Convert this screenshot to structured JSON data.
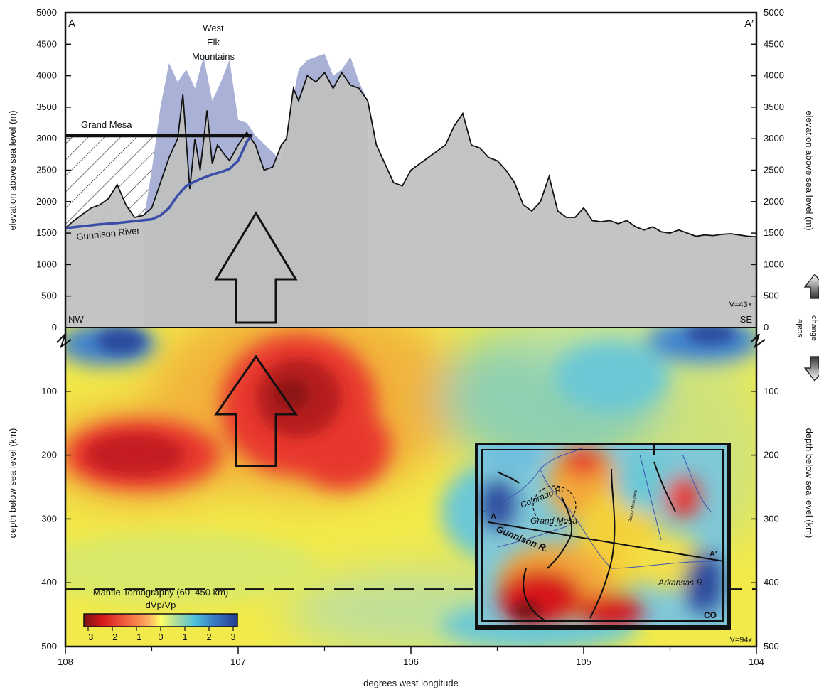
{
  "chart_data": {
    "type": "area",
    "upper_panel": {
      "ylabel": "elevation above sea level (m)",
      "ylim": [
        0,
        5000
      ],
      "yticks": [
        0,
        500,
        1000,
        1500,
        2000,
        2500,
        3000,
        3500,
        4000,
        4500,
        5000
      ],
      "ylabels_left": [
        "0",
        "500",
        "1000",
        "1500",
        "2000",
        "2500",
        "3000",
        "3500",
        "4000",
        "4500",
        "5000"
      ],
      "ylabels_right": [
        "0",
        "500",
        "1000",
        "1500",
        "2000",
        "2500",
        "3000",
        "3500",
        "4000",
        "4500",
        "5000"
      ],
      "topography": {
        "x": [
          108.0,
          107.95,
          107.9,
          107.85,
          107.8,
          107.75,
          107.7,
          107.65,
          107.6,
          107.55,
          107.5,
          107.45,
          107.4,
          107.35,
          107.32,
          107.28,
          107.25,
          107.22,
          107.18,
          107.15,
          107.12,
          107.08,
          107.05,
          107.0,
          106.95,
          106.9,
          106.85,
          106.8,
          106.75,
          106.72,
          106.68,
          106.65,
          106.6,
          106.55,
          106.5,
          106.45,
          106.4,
          106.35,
          106.3,
          106.25,
          106.2,
          106.15,
          106.1,
          106.05,
          106.0,
          105.95,
          105.9,
          105.85,
          105.8,
          105.75,
          105.7,
          105.65,
          105.6,
          105.55,
          105.5,
          105.45,
          105.4,
          105.35,
          105.3,
          105.25,
          105.2,
          105.15,
          105.1,
          105.05,
          105.0,
          104.95,
          104.9,
          104.85,
          104.8,
          104.75,
          104.7,
          104.65,
          104.6,
          104.55,
          104.5,
          104.45,
          104.4,
          104.35,
          104.3,
          104.25,
          104.2,
          104.15,
          104.1,
          104.05,
          104.0
        ],
        "y": [
          1580,
          1700,
          1800,
          1900,
          1950,
          2050,
          2270,
          1950,
          1750,
          1780,
          1900,
          2300,
          2700,
          3000,
          3700,
          2200,
          3000,
          2500,
          3450,
          2600,
          2900,
          2750,
          2650,
          2900,
          3100,
          2900,
          2500,
          2550,
          2900,
          3000,
          3800,
          3600,
          4000,
          3900,
          4050,
          3800,
          4050,
          3850,
          3800,
          3600,
          2900,
          2600,
          2300,
          2250,
          2500,
          2600,
          2700,
          2800,
          2900,
          3200,
          3400,
          2900,
          2850,
          2700,
          2650,
          2500,
          2300,
          1950,
          1850,
          2000,
          2400,
          1850,
          1750,
          1750,
          1900,
          1700,
          1680,
          1700,
          1650,
          1700,
          1600,
          1550,
          1600,
          1520,
          1500,
          1550,
          1500,
          1450,
          1470,
          1460,
          1480,
          1490,
          1470,
          1450,
          1440
        ]
      },
      "high_envelope": {
        "x": [
          107.55,
          107.5,
          107.45,
          107.4,
          107.35,
          107.3,
          107.25,
          107.2,
          107.15,
          107.1,
          107.05,
          107.0,
          106.95,
          106.9,
          106.75,
          106.7,
          106.65,
          106.6,
          106.55,
          106.5,
          106.45,
          106.4,
          106.35,
          106.3,
          106.25
        ],
        "y": [
          1650,
          2500,
          3500,
          4200,
          3900,
          4100,
          3800,
          4300,
          3600,
          3900,
          4250,
          3300,
          3250,
          3050,
          2650,
          3400,
          4100,
          4250,
          4300,
          4350,
          4000,
          4100,
          4300,
          3900,
          3600
        ]
      },
      "gunnison_river": {
        "x": [
          108.0,
          107.9,
          107.8,
          107.7,
          107.6,
          107.5,
          107.45,
          107.4,
          107.35,
          107.3,
          107.25,
          107.2,
          107.15,
          107.1,
          107.05,
          107.0,
          106.95,
          106.92
        ],
        "y": [
          1580,
          1610,
          1640,
          1660,
          1690,
          1720,
          1780,
          1900,
          2100,
          2250,
          2320,
          2380,
          2430,
          2470,
          2520,
          2650,
          2950,
          3070
        ]
      },
      "grand_mesa_level": 3050
    },
    "lower_panel": {
      "ylabel": "depth below sea level (km)",
      "ylim": [
        0,
        500
      ],
      "yticks": [
        100,
        200,
        300,
        400,
        500
      ],
      "ylabels_left": [
        "100",
        "200",
        "300",
        "400",
        "500"
      ],
      "ylabels_right": [
        "100",
        "200",
        "300",
        "400",
        "500"
      ],
      "dashed_line_depth": 410,
      "colorbar": {
        "title_line1": "Mantle Tomography (60–450 km)",
        "title_line2": "dVp/Vp",
        "ticks": [
          "−3",
          "−2",
          "−1",
          "0",
          "1",
          "2",
          "3"
        ],
        "min": -3,
        "max": 3
      }
    },
    "x_axis": {
      "label": "degrees west longitude",
      "xlim": [
        108,
        104
      ],
      "ticks": [
        108,
        107,
        106,
        105,
        104
      ],
      "ticklabels": [
        "108",
        "107",
        "106",
        "105",
        "104"
      ]
    },
    "annotations": {
      "a_label": "A",
      "a_prime_label": "A′",
      "nw": "NW",
      "se": "SE",
      "west_elk_1": "West",
      "west_elk_2": "Elk",
      "west_elk_3": "Mountains",
      "grand_mesa": "Grand Mesa",
      "gunnison_river": "Gunnison River",
      "v_upper": "V=43×",
      "v_lower": "V=94x",
      "scale_1": "scale",
      "scale_2": "change"
    },
    "inset": {
      "colorado_r": "Colorado R.",
      "grand_mesa": "Grand Mesa",
      "gunnison_r": "Gunnison R.",
      "arkansas_r": "Arkansas R.",
      "a": "A",
      "a_prime": "A′",
      "rocky_mtn": "Rocky Mountains",
      "logo": "CO"
    },
    "colors": {
      "topography_fill": "#c0c0c0",
      "high_envelope_fill": "#a9b1d6",
      "river": "#3a4da8",
      "low_velocity": "#d7191c",
      "high_velocity": "#2b4a9b"
    }
  }
}
